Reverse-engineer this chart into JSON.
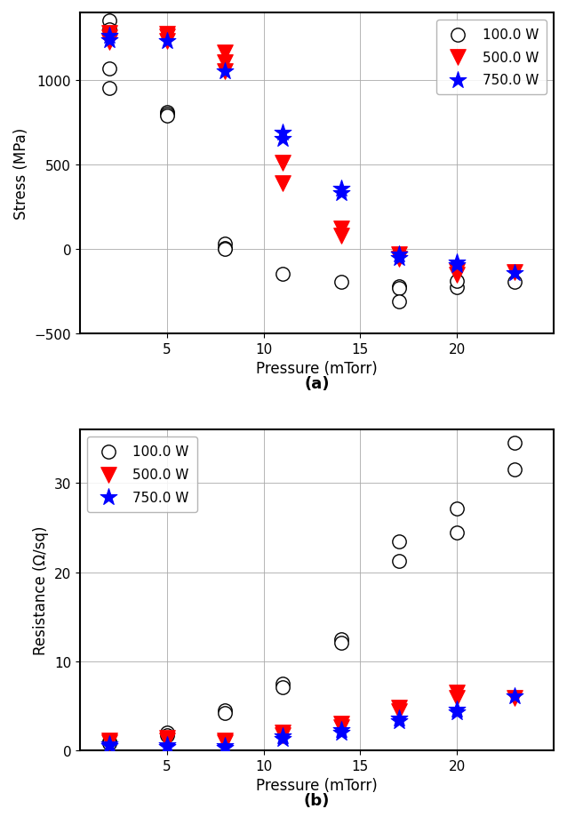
{
  "stress_100W": {
    "pressure": [
      2,
      2,
      2,
      2,
      5,
      5,
      5,
      8,
      8,
      8,
      11,
      14,
      17,
      17,
      17,
      20,
      20,
      23
    ],
    "stress": [
      1350,
      1300,
      1070,
      950,
      810,
      800,
      790,
      30,
      5,
      0,
      -150,
      -195,
      -220,
      -230,
      -310,
      -225,
      -190,
      -195
    ]
  },
  "stress_500W": {
    "pressure": [
      2,
      2,
      2,
      5,
      5,
      5,
      8,
      8,
      8,
      11,
      11,
      14,
      14,
      17,
      17,
      20,
      20,
      23
    ],
    "stress": [
      1280,
      1255,
      1225,
      1275,
      1260,
      1230,
      1165,
      1105,
      1055,
      510,
      390,
      120,
      80,
      -30,
      -60,
      -130,
      -155,
      -135
    ]
  },
  "stress_750W": {
    "pressure": [
      2,
      2,
      5,
      8,
      11,
      11,
      14,
      14,
      17,
      17,
      20,
      20,
      23
    ],
    "stress": [
      1265,
      1235,
      1230,
      1050,
      690,
      650,
      360,
      330,
      -30,
      -55,
      -80,
      -95,
      -145
    ]
  },
  "resistance_100W": {
    "pressure": [
      2,
      2,
      5,
      5,
      8,
      8,
      11,
      11,
      14,
      14,
      17,
      17,
      20,
      20,
      23,
      23
    ],
    "resistance": [
      1.05,
      0.85,
      2.0,
      1.75,
      4.5,
      4.2,
      7.5,
      7.1,
      12.5,
      12.1,
      23.5,
      21.3,
      27.2,
      24.5,
      34.5,
      31.5
    ]
  },
  "resistance_500W": {
    "pressure": [
      2,
      2,
      5,
      5,
      8,
      8,
      11,
      11,
      14,
      14,
      17,
      17,
      20,
      20,
      23
    ],
    "resistance": [
      1.15,
      0.95,
      1.4,
      1.1,
      1.15,
      0.95,
      2.0,
      1.7,
      3.0,
      2.6,
      4.8,
      4.4,
      6.5,
      5.9,
      5.9
    ]
  },
  "resistance_750W": {
    "pressure": [
      2,
      2,
      5,
      5,
      8,
      8,
      11,
      11,
      14,
      14,
      17,
      17,
      20,
      20,
      23
    ],
    "resistance": [
      0.75,
      0.55,
      0.65,
      0.45,
      0.5,
      0.3,
      1.6,
      1.35,
      2.3,
      2.0,
      3.6,
      3.3,
      4.6,
      4.3,
      6.1
    ]
  },
  "stress_ylim": [
    -400,
    1400
  ],
  "stress_yticks": [
    -500,
    0,
    500,
    1000
  ],
  "resistance_ylim": [
    0,
    36
  ],
  "resistance_yticks": [
    0,
    10,
    20,
    30
  ],
  "xticks": [
    5,
    10,
    15,
    20
  ],
  "xlim": [
    0.5,
    25
  ],
  "xlabel": "Pressure (mTorr)",
  "stress_ylabel": "Stress (MPa)",
  "resistance_ylabel": "Resistance (Ω/sq)",
  "label_100W": "100.0 W",
  "label_500W": "500.0 W",
  "label_750W": "750.0 W",
  "color_100W": "black",
  "color_500W": "red",
  "color_750W": "blue",
  "marker_100W": "o",
  "marker_500W": "v",
  "marker_750W": "*",
  "subtitle_a": "(a)",
  "subtitle_b": "(b)",
  "markersize_circle": 7,
  "markersize_tri": 8,
  "markersize_star": 10,
  "fontsize_label": 12,
  "fontsize_tick": 11,
  "fontsize_legend": 11,
  "fontsize_subtitle": 13
}
